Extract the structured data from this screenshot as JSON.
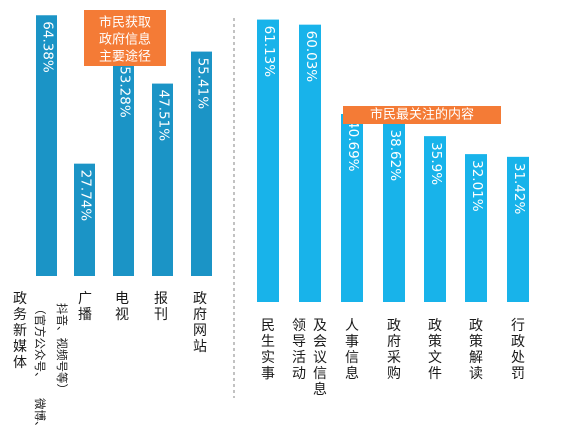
{
  "chart_data": [
    {
      "type": "bar",
      "title": "市民获取政府信息主要途径",
      "categories": [
        "政务新媒体",
        "广播",
        "电视",
        "报刊",
        "政府网站"
      ],
      "subcategory_notes": [
        "（官方公众号、抖音、视频号等）微博、",
        "",
        "",
        "",
        ""
      ],
      "values": [
        64.38,
        27.74,
        53.28,
        47.51,
        55.41
      ],
      "value_labels": [
        "64.38%",
        "27.74%",
        "53.28%",
        "47.51%",
        "55.41%"
      ],
      "ylim": [
        0,
        100
      ],
      "color": "#1b94c6"
    },
    {
      "type": "bar",
      "title": "市民最关注的内容",
      "categories": [
        "民生实事",
        "领导活动及会议信息",
        "人事信息",
        "政府采购",
        "政策文件",
        "政策解读",
        "行政处罚"
      ],
      "label_columns": [
        [
          "民生实事"
        ],
        [
          "领导活动",
          "及会议信息"
        ],
        [
          "人事信息"
        ],
        [
          "政府采购"
        ],
        [
          "政策文件"
        ],
        [
          "政策解读"
        ],
        [
          "行政处罚"
        ]
      ],
      "values": [
        61.13,
        60.03,
        40.69,
        38.62,
        35.9,
        32.01,
        31.42
      ],
      "value_labels": [
        "61.13%",
        "60.03%",
        "40.69%",
        "38.62%",
        "35.9%",
        "32.01%",
        "31.42%"
      ],
      "ylim": [
        0,
        100
      ],
      "color": "#18b3ea"
    }
  ],
  "colors": {
    "left_bar": "#1b94c6",
    "right_bar": "#18b3ea",
    "badge": "#f47b36",
    "divider": "#9a9a9a"
  }
}
